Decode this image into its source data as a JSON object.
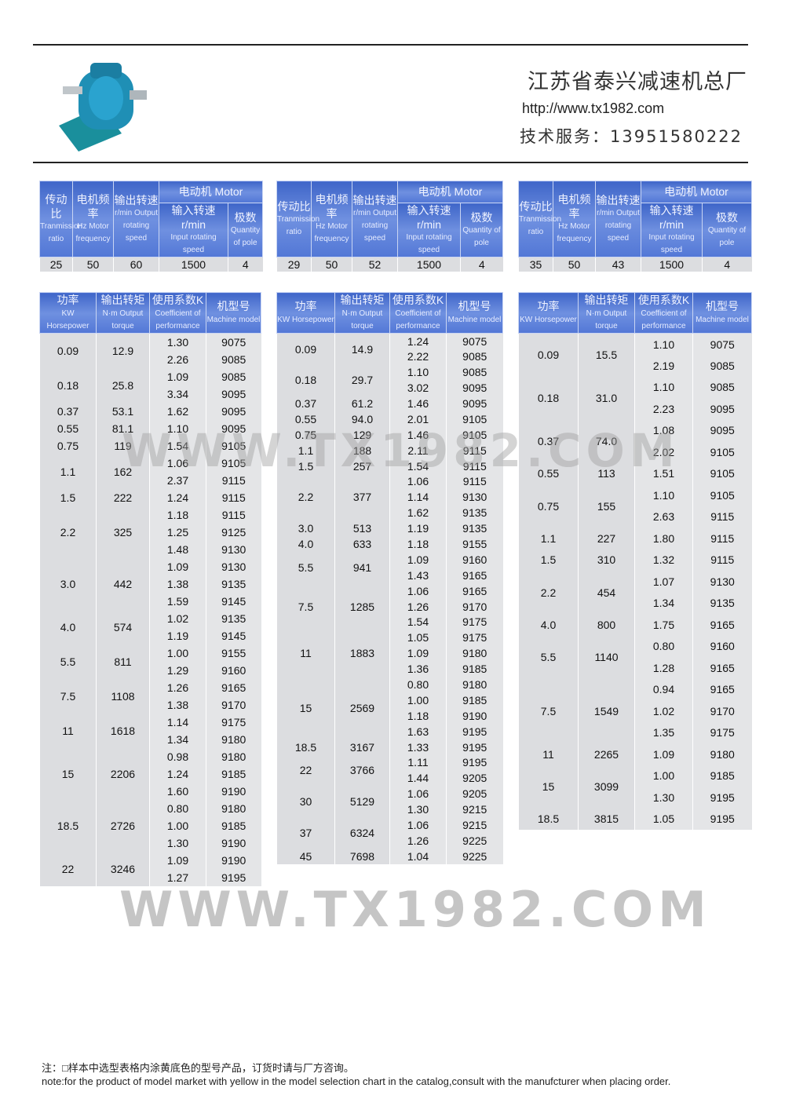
{
  "header": {
    "company": "江苏省泰兴减速机总厂",
    "url": "http://www.tx1982.com",
    "service": "技术服务：13951580222"
  },
  "watermark": "WWW.TX1982.COM",
  "spec_headers": {
    "ratio_cn": "传动比",
    "ratio_en": "Tranmission ratio",
    "freq_cn": "电机频率",
    "freq_en": "Hz Motor frequency",
    "out_cn": "输出转速",
    "out_en": "r/min Output rotating speed",
    "motor_cn": "电动机 Motor",
    "in_cn": "输入转速 r/min",
    "in_en": "Input rotating speed",
    "pole_cn": "极数",
    "pole_en": "Quantity of pole"
  },
  "sel_headers": {
    "kw_cn": "功率",
    "kw_en": "KW Horsepower",
    "tq_cn": "输出转矩",
    "tq_en": "N·m Output torque",
    "k_cn": "使用系数K",
    "k_en": "Coefficient of performance",
    "m_cn": "机型号",
    "m_en": "Machine model"
  },
  "tables": [
    {
      "spec": {
        "ratio": "25",
        "freq": "50",
        "out": "60",
        "in": "1500",
        "pole": "4"
      },
      "groups": [
        {
          "kw": "0.09",
          "tq": "12.9",
          "rows": [
            [
              "1.30",
              "9075"
            ],
            [
              "2.26",
              "9085"
            ]
          ]
        },
        {
          "kw": "0.18",
          "tq": "25.8",
          "rows": [
            [
              "1.09",
              "9085"
            ],
            [
              "3.34",
              "9095"
            ]
          ]
        },
        {
          "kw": "0.37",
          "tq": "53.1",
          "rows": [
            [
              "1.62",
              "9095"
            ]
          ]
        },
        {
          "kw": "0.55",
          "tq": "81.1",
          "rows": [
            [
              "1.10",
              "9095",
              1
            ]
          ]
        },
        {
          "kw": "0.75",
          "tq": "119",
          "rows": [
            [
              "1.54",
              "9105"
            ]
          ]
        },
        {
          "kw": "1.1",
          "tq": "162",
          "rows": [
            [
              "1.06",
              "9105"
            ],
            [
              "2.37",
              "9115"
            ]
          ]
        },
        {
          "kw": "1.5",
          "tq": "222",
          "rows": [
            [
              "1.24",
              "9115"
            ]
          ]
        },
        {
          "kw": "2.2",
          "tq": "325",
          "rows": [
            [
              "1.18",
              "9115",
              1
            ],
            [
              "1.25",
              "9125",
              1
            ],
            [
              "1.48",
              "9130"
            ]
          ]
        },
        {
          "kw": "3.0",
          "tq": "442",
          "rows": [
            [
              "1.09",
              "9130"
            ],
            [
              "1.38",
              "9135"
            ],
            [
              "1.59",
              "9145"
            ]
          ]
        },
        {
          "kw": "4.0",
          "tq": "574",
          "rows": [
            [
              "1.02",
              "9135"
            ],
            [
              "1.19",
              "9145"
            ]
          ]
        },
        {
          "kw": "5.5",
          "tq": "811",
          "rows": [
            [
              "1.00",
              "9155"
            ],
            [
              "1.29",
              "9160"
            ]
          ]
        },
        {
          "kw": "7.5",
          "tq": "1108",
          "rows": [
            [
              "1.26",
              "9165"
            ],
            [
              "1.38",
              "9170"
            ]
          ]
        },
        {
          "kw": "11",
          "tq": "1618",
          "rows": [
            [
              "1.14",
              "9175"
            ],
            [
              "1.34",
              "9180"
            ]
          ]
        },
        {
          "kw": "15",
          "tq": "2206",
          "rows": [
            [
              "0.98",
              "9180"
            ],
            [
              "1.24",
              "9185"
            ],
            [
              "1.60",
              "9190"
            ]
          ]
        },
        {
          "kw": "18.5",
          "tq": "2726",
          "rows": [
            [
              "0.80",
              "9180"
            ],
            [
              "1.00",
              "9185"
            ],
            [
              "1.30",
              "9190"
            ]
          ]
        },
        {
          "kw": "22",
          "tq": "3246",
          "rows": [
            [
              "1.09",
              "9190"
            ],
            [
              "1.27",
              "9195"
            ]
          ]
        }
      ]
    },
    {
      "spec": {
        "ratio": "29",
        "freq": "50",
        "out": "52",
        "in": "1500",
        "pole": "4"
      },
      "groups": [
        {
          "kw": "0.09",
          "tq": "14.9",
          "rows": [
            [
              "1.24",
              "9075"
            ],
            [
              "2.22",
              "9085"
            ]
          ]
        },
        {
          "kw": "0.18",
          "tq": "29.7",
          "rows": [
            [
              "1.10",
              "9085"
            ],
            [
              "3.02",
              "9095"
            ]
          ]
        },
        {
          "kw": "0.37",
          "tq": "61.2",
          "rows": [
            [
              "1.46",
              "9095"
            ]
          ]
        },
        {
          "kw": "0.55",
          "tq": "94.0",
          "rows": [
            [
              "2.01",
              "9105"
            ]
          ]
        },
        {
          "kw": "0.75",
          "tq": "129",
          "rows": [
            [
              "1.46",
              "9105"
            ]
          ]
        },
        {
          "kw": "1.1",
          "tq": "188",
          "rows": [
            [
              "2.11",
              "9115"
            ]
          ]
        },
        {
          "kw": "1.5",
          "tq": "257",
          "rows": [
            [
              "1.54",
              "9115"
            ]
          ]
        },
        {
          "kw": "2.2",
          "tq": "377",
          "rows": [
            [
              "1.06",
              "9115"
            ],
            [
              "1.14",
              "9130"
            ],
            [
              "1.62",
              "9135"
            ]
          ]
        },
        {
          "kw": "3.0",
          "tq": "513",
          "rows": [
            [
              "1.19",
              "9135"
            ]
          ]
        },
        {
          "kw": "4.0",
          "tq": "633",
          "rows": [
            [
              "1.18",
              "9155"
            ]
          ]
        },
        {
          "kw": "5.5",
          "tq": "941",
          "rows": [
            [
              "1.09",
              "9160"
            ],
            [
              "1.43",
              "9165"
            ]
          ]
        },
        {
          "kw": "7.5",
          "tq": "1285",
          "rows": [
            [
              "1.06",
              "9165"
            ],
            [
              "1.26",
              "9170"
            ],
            [
              "1.54",
              "9175"
            ]
          ]
        },
        {
          "kw": "11",
          "tq": "1883",
          "rows": [
            [
              "1.05",
              "9175"
            ],
            [
              "1.09",
              "9180"
            ],
            [
              "1.36",
              "9185"
            ]
          ]
        },
        {
          "kw": "15",
          "tq": "2569",
          "rows": [
            [
              "0.80",
              "9180"
            ],
            [
              "1.00",
              "9185"
            ],
            [
              "1.18",
              "9190"
            ],
            [
              "1.63",
              "9195"
            ]
          ]
        },
        {
          "kw": "18.5",
          "tq": "3167",
          "rows": [
            [
              "1.33",
              "9195"
            ]
          ]
        },
        {
          "kw": "22",
          "tq": "3766",
          "rows": [
            [
              "1.11",
              "9195"
            ],
            [
              "1.44",
              "9205"
            ]
          ]
        },
        {
          "kw": "30",
          "tq": "5129",
          "rows": [
            [
              "1.06",
              "9205"
            ],
            [
              "1.30",
              "9215"
            ]
          ]
        },
        {
          "kw": "37",
          "tq": "6324",
          "rows": [
            [
              "1.06",
              "9215",
              1
            ],
            [
              "1.26",
              "9225"
            ]
          ]
        },
        {
          "kw": "45",
          "tq": "7698",
          "rows": [
            [
              "1.04",
              "9225",
              1
            ]
          ]
        }
      ]
    },
    {
      "spec": {
        "ratio": "35",
        "freq": "50",
        "out": "43",
        "in": "1500",
        "pole": "4"
      },
      "groups": [
        {
          "kw": "0.09",
          "tq": "15.5",
          "rows": [
            [
              "1.10",
              "9075"
            ],
            [
              "2.19",
              "9085"
            ]
          ]
        },
        {
          "kw": "0.18",
          "tq": "31.0",
          "rows": [
            [
              "1.10",
              "9085"
            ],
            [
              "2.23",
              "9095"
            ]
          ]
        },
        {
          "kw": "0.37",
          "tq": "74.0",
          "rows": [
            [
              "1.08",
              "9095"
            ],
            [
              "2.02",
              "9105"
            ]
          ]
        },
        {
          "kw": "0.55",
          "tq": "113",
          "rows": [
            [
              "1.51",
              "9105"
            ]
          ]
        },
        {
          "kw": "0.75",
          "tq": "155",
          "rows": [
            [
              "1.10",
              "9105"
            ],
            [
              "2.63",
              "9115"
            ]
          ]
        },
        {
          "kw": "1.1",
          "tq": "227",
          "rows": [
            [
              "1.80",
              "9115"
            ]
          ]
        },
        {
          "kw": "1.5",
          "tq": "310",
          "rows": [
            [
              "1.32",
              "9115"
            ]
          ]
        },
        {
          "kw": "2.2",
          "tq": "454",
          "rows": [
            [
              "1.07",
              "9130"
            ],
            [
              "1.34",
              "9135"
            ]
          ]
        },
        {
          "kw": "4.0",
          "tq": "800",
          "rows": [
            [
              "1.75",
              "9165"
            ]
          ]
        },
        {
          "kw": "5.5",
          "tq": "1140",
          "rows": [
            [
              "0.80",
              "9160"
            ],
            [
              "1.28",
              "9165"
            ]
          ]
        },
        {
          "kw": "7.5",
          "tq": "1549",
          "rows": [
            [
              "0.94",
              "9165"
            ],
            [
              "1.02",
              "9170"
            ],
            [
              "1.35",
              "9175"
            ]
          ]
        },
        {
          "kw": "11",
          "tq": "2265",
          "rows": [
            [
              "1.09",
              "9180"
            ]
          ]
        },
        {
          "kw": "15",
          "tq": "3099",
          "rows": [
            [
              "1.00",
              "9185"
            ],
            [
              "1.30",
              "9195"
            ]
          ]
        },
        {
          "kw": "18.5",
          "tq": "3815",
          "rows": [
            [
              "1.05",
              "9195"
            ]
          ]
        }
      ]
    }
  ],
  "highlight_color": "#f7f3a8",
  "header_color": "#4a6fd2",
  "note": {
    "cn": "注：□样本中选型表格内涂黄底色的型号产品，订货时请与厂方咨询。",
    "en": "note:for the product of model market with yellow in the model selection chart in the catalog,consult with the manufcturer when placing order."
  }
}
